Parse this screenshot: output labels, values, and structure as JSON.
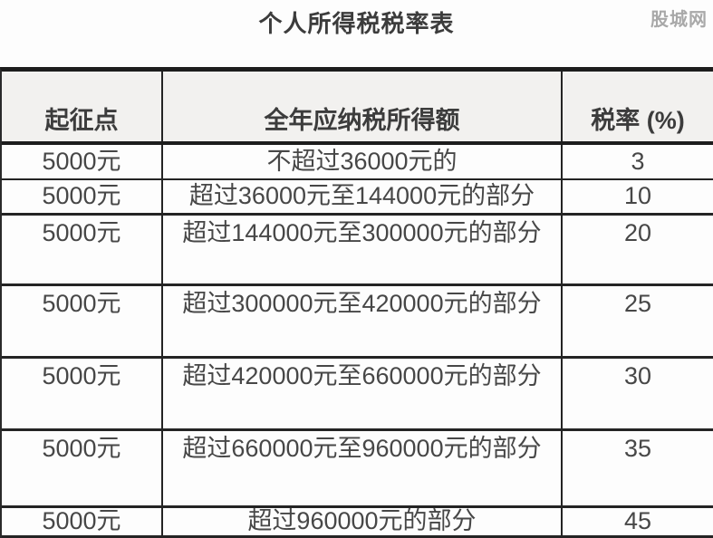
{
  "page": {
    "title": "个人所得税税率表",
    "watermark": "股城网"
  },
  "table": {
    "columns": [
      {
        "label": "起征点"
      },
      {
        "label": "全年应纳税所得额"
      },
      {
        "label": "税率 (%)"
      }
    ],
    "rows": [
      {
        "threshold": "5000元",
        "bracket": "不超过36000元的",
        "rate": "3"
      },
      {
        "threshold": "5000元",
        "bracket": "超过36000元至144000元的部分",
        "rate": "10"
      },
      {
        "threshold": "5000元",
        "bracket": "超过144000元至300000元的部分",
        "rate": "20"
      },
      {
        "threshold": "5000元",
        "bracket": "超过300000元至420000元的部分",
        "rate": "25"
      },
      {
        "threshold": "5000元",
        "bracket": "超过420000元至660000元的部分",
        "rate": "30"
      },
      {
        "threshold": "5000元",
        "bracket": "超过660000元至960000元的部分",
        "rate": "35"
      },
      {
        "threshold": "5000元",
        "bracket": "超过960000元的部分",
        "rate": "45"
      }
    ]
  },
  "colors": {
    "border_dark": "#1d1d1d",
    "header_bg": "#f2f1ef",
    "text_dark": "#3c3c3c",
    "watermark": "#a9a9a9"
  }
}
